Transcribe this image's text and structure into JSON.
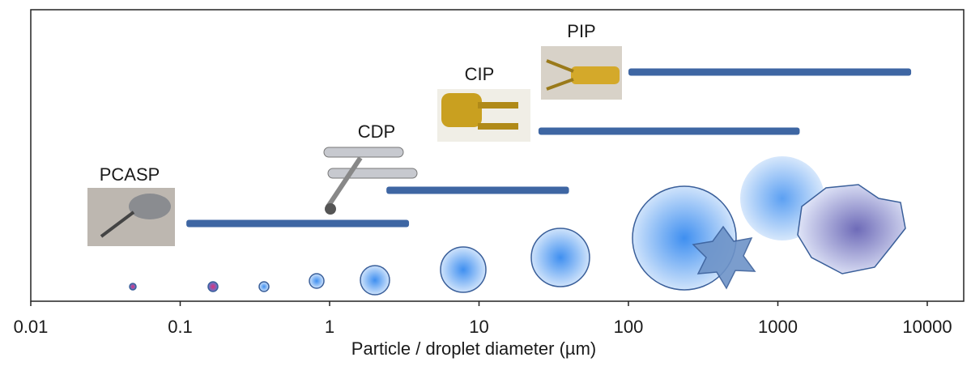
{
  "chart_data": {
    "type": "range",
    "categories": [
      "PCASP",
      "CDP",
      "CIP",
      "PIP"
    ],
    "values": [
      [
        0.11,
        3.4
      ],
      [
        2.4,
        40
      ],
      [
        25,
        1400
      ],
      [
        100,
        7800
      ]
    ],
    "color": "#3e66a3",
    "xlabel": "Particle / droplet diameter (µm)",
    "xlim": [
      0.01,
      10000
    ],
    "xticks": [
      0.01,
      0.1,
      1,
      10,
      100,
      1000,
      10000
    ],
    "log_x": true
  }
}
